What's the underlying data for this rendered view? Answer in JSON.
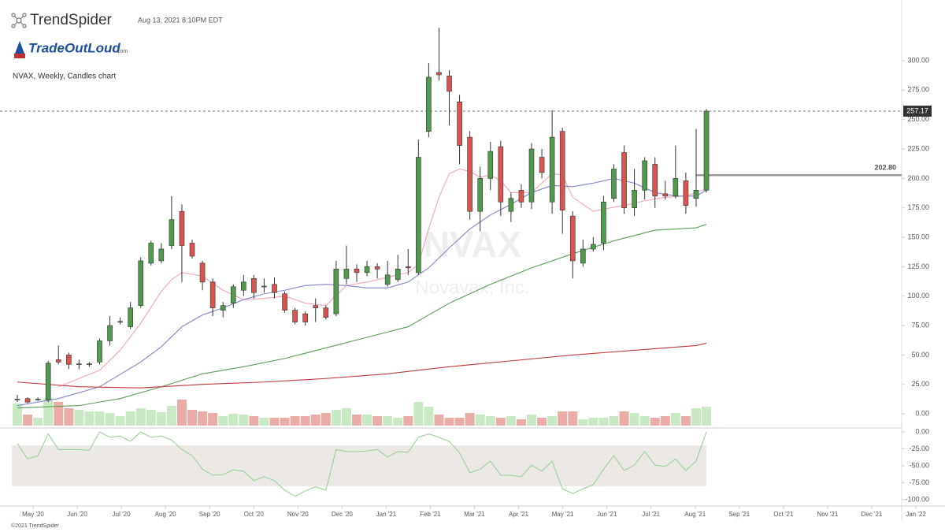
{
  "chart_data": {
    "type": "candlestick",
    "brand": "TrendSpider",
    "timestamp": "Aug 13, 2021 8:10PM EDT",
    "logo": "TradeOutLoud",
    "logo_suffix": ".com",
    "title": "NVAX, Weekly, Candles chart",
    "watermark": "NVAX",
    "watermark_sub": "Novavax, Inc.",
    "footer": "©2021 TrendSpider",
    "up_color": "#4f9a4c",
    "down_color": "#d9534f",
    "candles": {
      "open": [
        12,
        13,
        12,
        12,
        46,
        50,
        42,
        42,
        44,
        62,
        78,
        74,
        92,
        128,
        130,
        143,
        172,
        145,
        128,
        112,
        88,
        94,
        105,
        115,
        108,
        110,
        102,
        88,
        85,
        92,
        90,
        85,
        115,
        123,
        120,
        125,
        110,
        114,
        125,
        120,
        240,
        290,
        287,
        265,
        235,
        172,
        200,
        227,
        172,
        190,
        180,
        218,
        180,
        240,
        168,
        128,
        140,
        145,
        183,
        222,
        175,
        190,
        212,
        187,
        185,
        198,
        183,
        190
      ],
      "high": [
        16,
        14,
        14,
        45,
        58,
        52,
        46,
        44,
        64,
        83,
        82,
        95,
        133,
        147,
        145,
        185,
        178,
        148,
        130,
        115,
        95,
        110,
        118,
        118,
        115,
        116,
        104,
        90,
        87,
        98,
        92,
        130,
        143,
        127,
        130,
        128,
        130,
        135,
        140,
        233,
        298,
        328,
        292,
        271,
        240,
        210,
        231,
        232,
        188,
        195,
        230,
        225,
        258,
        243,
        172,
        148,
        150,
        185,
        212,
        228,
        208,
        218,
        218,
        198,
        228,
        205,
        242,
        259
      ],
      "low": [
        10,
        9,
        11,
        10,
        42,
        38,
        38,
        40,
        42,
        58,
        76,
        72,
        90,
        126,
        128,
        140,
        112,
        132,
        105,
        83,
        82,
        90,
        100,
        98,
        103,
        98,
        86,
        76,
        75,
        78,
        80,
        83,
        110,
        112,
        117,
        115,
        108,
        112,
        118,
        118,
        235,
        283,
        245,
        212,
        165,
        155,
        190,
        168,
        163,
        175,
        174,
        200,
        170,
        153,
        115,
        125,
        138,
        139,
        180,
        170,
        168,
        182,
        175,
        182,
        183,
        170,
        176,
        188
      ],
      "close": [
        12.5,
        10,
        12.5,
        43,
        44,
        42,
        42.5,
        42.5,
        62,
        75,
        78.5,
        90,
        130,
        145,
        140,
        165,
        143,
        134,
        112,
        90,
        92,
        108,
        112,
        103,
        108.5,
        103,
        88,
        78,
        78,
        90,
        82,
        123,
        123,
        120,
        125,
        123,
        118,
        123,
        124,
        218,
        286,
        288,
        274,
        228,
        172,
        200,
        223,
        180,
        183,
        180,
        225,
        205,
        235,
        173,
        130,
        140,
        144,
        180,
        208,
        175,
        190,
        215,
        185,
        185,
        200,
        177,
        190,
        257.17
      ]
    },
    "volume": [
      28,
      14,
      10,
      35,
      30,
      22,
      20,
      18,
      18,
      16,
      12,
      18,
      22,
      20,
      17,
      25,
      33,
      20,
      18,
      16,
      12,
      15,
      14,
      12,
      10,
      10,
      10,
      12,
      12,
      14,
      16,
      20,
      22,
      14,
      14,
      12,
      12,
      10,
      12,
      30,
      24,
      14,
      10,
      10,
      16,
      14,
      12,
      10,
      12,
      8,
      14,
      10,
      12,
      18,
      18,
      8,
      10,
      10,
      12,
      18,
      16,
      12,
      10,
      12,
      16,
      12,
      22,
      24
    ],
    "series": [
      {
        "color": "#f4a6b4",
        "x": [
          4,
          8,
          10,
          12,
          14,
          15,
          16,
          18,
          20,
          22,
          24,
          26,
          28,
          30,
          32,
          34,
          36,
          38,
          39,
          40,
          41,
          42,
          43,
          44,
          45,
          46,
          47,
          48,
          50,
          52,
          53,
          54,
          56,
          57,
          59,
          61,
          63,
          65,
          67
        ],
        "values": [
          23,
          37,
          54,
          77,
          104,
          114,
          120,
          117,
          105,
          97,
          98,
          100,
          94,
          92,
          109,
          112,
          116,
          120,
          127,
          157,
          184,
          204,
          208,
          206,
          201,
          203,
          198,
          188,
          188,
          204,
          203,
          184,
          172,
          174,
          177,
          181,
          184,
          185,
          191
        ]
      },
      {
        "color": "#7f86c8",
        "x": [
          0,
          4,
          8,
          12,
          14,
          16,
          18,
          20,
          22,
          24,
          26,
          28,
          30,
          32,
          34,
          36,
          38,
          40,
          42,
          44,
          46,
          48,
          50,
          52,
          54,
          56,
          58,
          60,
          62,
          64,
          66,
          67
        ],
        "values": [
          7,
          13,
          23,
          44,
          57,
          74,
          84,
          90,
          97,
          102,
          105,
          109,
          110,
          109,
          107,
          107,
          112,
          124,
          141,
          157,
          169,
          178,
          188,
          194,
          193,
          196,
          200,
          196,
          188,
          185,
          185,
          190
        ]
      },
      {
        "color": "#5c9c58",
        "x": [
          0,
          6,
          10,
          14,
          18,
          22,
          26,
          30,
          34,
          38,
          42,
          46,
          50,
          54,
          58,
          62,
          66,
          67
        ],
        "values": [
          5,
          7,
          13,
          23,
          34,
          40,
          47,
          56,
          65,
          74,
          94,
          110,
          124,
          136,
          147,
          156,
          158,
          161
        ]
      },
      {
        "color": "#c0393a",
        "x": [
          0,
          6,
          12,
          18,
          24,
          30,
          36,
          42,
          48,
          54,
          60,
          66,
          67
        ],
        "values": [
          27,
          23,
          22,
          25,
          27,
          30,
          34,
          40,
          45,
          50,
          54,
          58,
          60
        ]
      }
    ],
    "last_price": 257.17,
    "level": {
      "value": 202.8,
      "label": "202.80"
    },
    "ylim": [
      -10,
      340
    ],
    "yticks": [
      {
        "value": 0,
        "label": "0.00"
      },
      {
        "value": 25,
        "label": "25.00"
      },
      {
        "value": 50,
        "label": "50.00"
      },
      {
        "value": 75,
        "label": "75.00"
      },
      {
        "value": 100,
        "label": "100.00"
      },
      {
        "value": 125,
        "label": "125.00"
      },
      {
        "value": 150,
        "label": "150.00"
      },
      {
        "value": 175,
        "label": "175.00"
      },
      {
        "value": 200,
        "label": "200.00"
      },
      {
        "value": 225,
        "label": "225.00"
      },
      {
        "value": 250,
        "label": "250.00"
      },
      {
        "value": 275,
        "label": "275.00"
      },
      {
        "value": 300,
        "label": "300.00"
      }
    ],
    "x_labels": [
      "May '20",
      "Jun '20",
      "Jul '20",
      "Aug '20",
      "Sep '20",
      "Oct '20",
      "Nov '20",
      "Dec '20",
      "Jan '21",
      "Feb '21",
      "Mar '21",
      "Apr '21",
      "May '21",
      "Jun '21",
      "Jul '21",
      "Aug '21",
      "Sep '21",
      "Oct '21",
      "Nov '21",
      "Dec '21",
      "Jan '22"
    ],
    "oscillator": {
      "color": "#8fd08a",
      "band": [
        -20,
        -80
      ],
      "ylim": [
        -110,
        5
      ],
      "yticks": [
        {
          "value": 0,
          "label": "0.00"
        },
        {
          "value": -25,
          "label": "-25.00"
        },
        {
          "value": -50,
          "label": "-50.00"
        },
        {
          "value": -75,
          "label": "-75.00"
        },
        {
          "value": -100,
          "label": "-100.00"
        }
      ],
      "values": [
        -17,
        -40,
        -35,
        -3,
        -26,
        -26,
        -26,
        -27,
        0,
        -8,
        -6,
        -14,
        0,
        -8,
        -6,
        -12,
        -26,
        -35,
        -55,
        -64,
        -63,
        -56,
        -58,
        -72,
        -66,
        -72,
        -86,
        -95,
        -87,
        -81,
        -86,
        -26,
        -29,
        -29,
        -28,
        -26,
        -37,
        -29,
        -30,
        -8,
        -3,
        -8,
        -14,
        -31,
        -60,
        -55,
        -43,
        -64,
        -64,
        -66,
        -49,
        -58,
        -43,
        -84,
        -91,
        -84,
        -78,
        -55,
        -35,
        -57,
        -49,
        -29,
        -49,
        -51,
        -40,
        -57,
        -43,
        0
      ]
    }
  }
}
